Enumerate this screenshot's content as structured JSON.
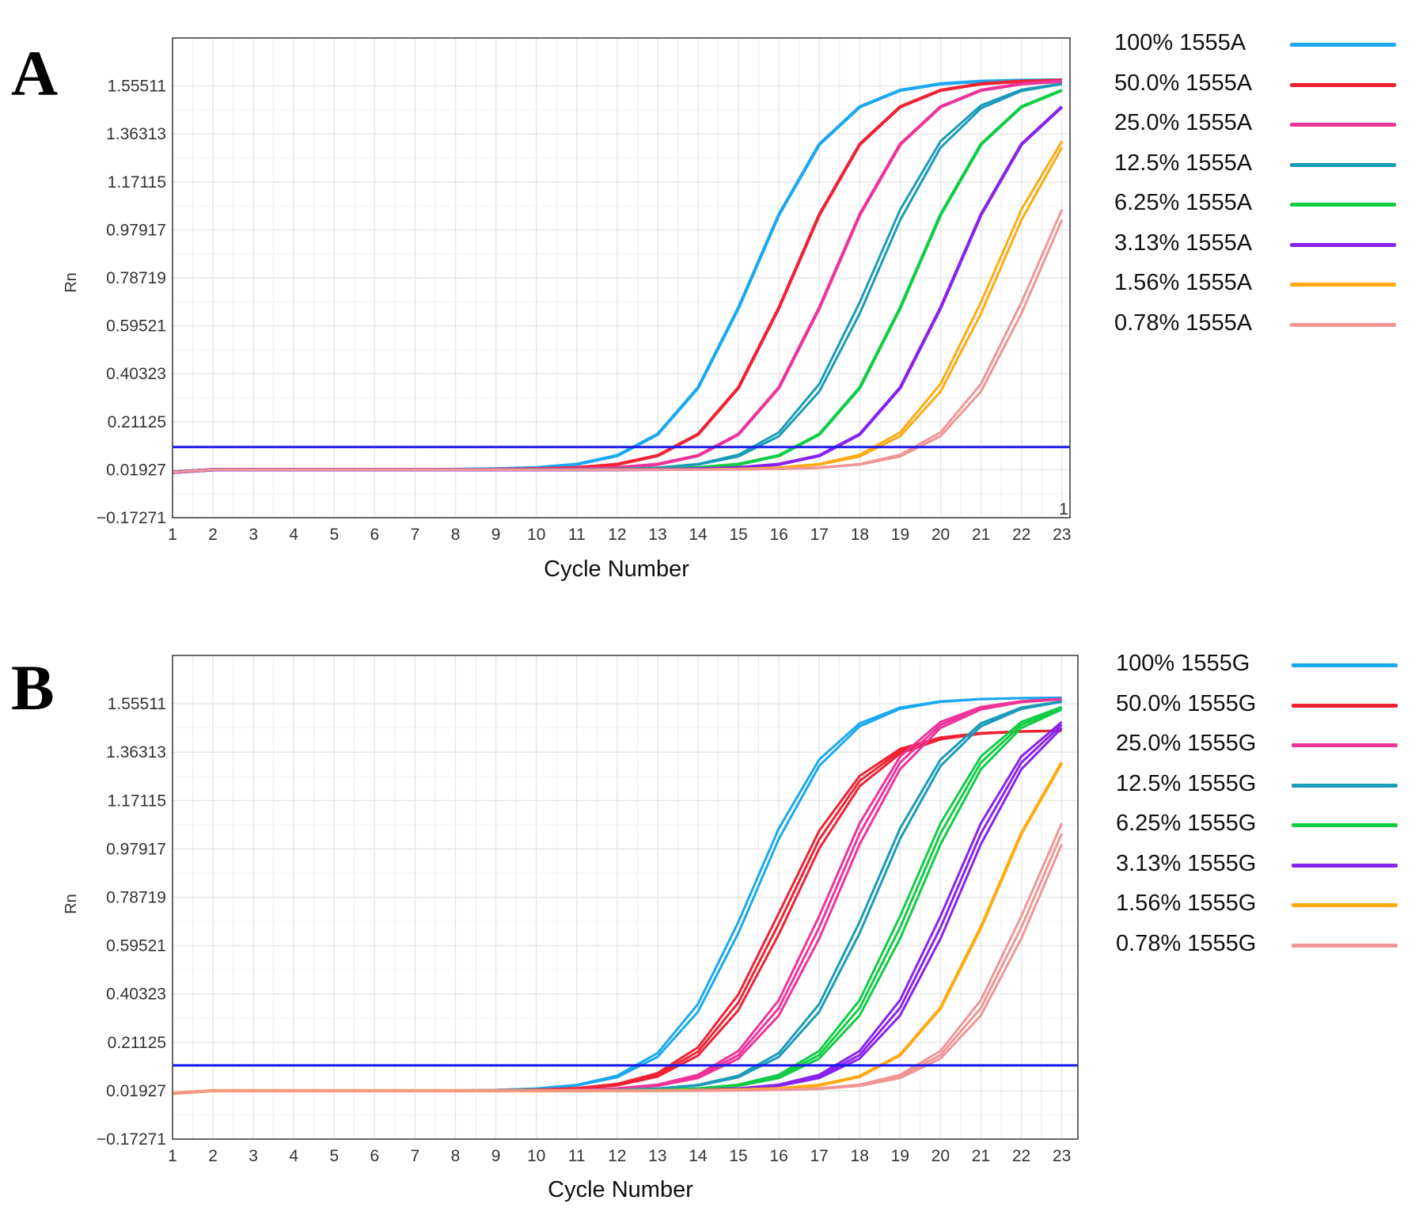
{
  "panels": {
    "a": {
      "letter": "A"
    },
    "b": {
      "letter": "B"
    }
  },
  "colors": {
    "threshold": "#1a1aee",
    "grid": "#e6e6e6",
    "frame": "#444444"
  },
  "chart_data": [
    {
      "type": "line",
      "panel": "A",
      "xlabel": "Cycle Number",
      "ylabel": "Rn",
      "x": [
        1,
        2,
        3,
        4,
        5,
        6,
        7,
        8,
        9,
        10,
        11,
        12,
        13,
        14,
        15,
        16,
        17,
        18,
        19,
        20,
        21,
        22,
        23
      ],
      "xlim": [
        1,
        23.2
      ],
      "ylim": [
        -0.17271,
        1.74709
      ],
      "yticks": [
        "1.55511",
        "1.36313",
        "1.17115",
        "0.97917",
        "0.78719",
        "0.59521",
        "0.40323",
        "0.21125",
        "0.01927",
        "−0.17271"
      ],
      "ytick_values": [
        1.55511,
        1.36313,
        1.17115,
        0.97917,
        0.78719,
        0.59521,
        0.40323,
        0.21125,
        0.01927,
        -0.17271
      ],
      "xticks": [
        "1",
        "2",
        "3",
        "4",
        "5",
        "6",
        "7",
        "8",
        "9",
        "10",
        "11",
        "12",
        "13",
        "14",
        "15",
        "16",
        "17",
        "18",
        "19",
        "20",
        "21",
        "22",
        "23"
      ],
      "threshold": 0.11,
      "corner_mark": "1",
      "series": [
        {
          "name": "100% 1555A",
          "color": "#1aa8f0",
          "ct": 11.0,
          "reps": 1
        },
        {
          "name": "50.0% 1555A",
          "color": "#ee2233",
          "ct": 12.0,
          "reps": 1
        },
        {
          "name": "25.0% 1555A",
          "color": "#ee3399",
          "ct": 13.0,
          "reps": 1
        },
        {
          "name": "12.5% 1555A",
          "color": "#1a9bb8",
          "ct": 14.0,
          "reps": 2
        },
        {
          "name": "6.25% 1555A",
          "color": "#11cc44",
          "ct": 15.0,
          "reps": 1
        },
        {
          "name": "3.13% 1555A",
          "color": "#8822ee",
          "ct": 16.0,
          "reps": 1
        },
        {
          "name": "1.56% 1555A",
          "color": "#ffaa11",
          "ct": 17.0,
          "reps": 2
        },
        {
          "name": "0.78% 1555A",
          "color": "#f09595",
          "ct": 18.0,
          "reps": 2
        }
      ]
    },
    {
      "type": "line",
      "panel": "B",
      "xlabel": "Cycle Number",
      "ylabel": "Rn",
      "x": [
        1,
        2,
        3,
        4,
        5,
        6,
        7,
        8,
        9,
        10,
        11,
        12,
        13,
        14,
        15,
        16,
        17,
        18,
        19,
        20,
        21,
        22,
        23
      ],
      "xlim": [
        1,
        23.4
      ],
      "ylim": [
        -0.17271,
        1.74709
      ],
      "yticks": [
        "1.55511",
        "1.36313",
        "1.17115",
        "0.97917",
        "0.78719",
        "0.59521",
        "0.40323",
        "0.21125",
        "0.01927",
        "−0.17271"
      ],
      "ytick_values": [
        1.55511,
        1.36313,
        1.17115,
        0.97917,
        0.78719,
        0.59521,
        0.40323,
        0.21125,
        0.01927,
        -0.17271
      ],
      "xticks": [
        "1",
        "2",
        "3",
        "4",
        "5",
        "6",
        "7",
        "8",
        "9",
        "10",
        "11",
        "12",
        "13",
        "14",
        "15",
        "16",
        "17",
        "18",
        "19",
        "20",
        "21",
        "22",
        "23"
      ],
      "threshold": 0.12,
      "series": [
        {
          "name": "100% 1555G",
          "color": "#1aa8f0",
          "ct": 11.0,
          "reps": 2
        },
        {
          "name": "50.0% 1555G",
          "color": "#ee2233",
          "ct": 11.8,
          "reps": 3,
          "plateau": 1.45
        },
        {
          "name": "25.0% 1555G",
          "color": "#ee3399",
          "ct": 13.0,
          "reps": 3
        },
        {
          "name": "12.5% 1555G",
          "color": "#1a9bb8",
          "ct": 14.0,
          "reps": 2
        },
        {
          "name": "6.25% 1555G",
          "color": "#11cc44",
          "ct": 15.0,
          "reps": 3
        },
        {
          "name": "3.13% 1555G",
          "color": "#8822ee",
          "ct": 16.0,
          "reps": 3
        },
        {
          "name": "1.56% 1555G",
          "color": "#ffaa11",
          "ct": 17.0,
          "reps": 1
        },
        {
          "name": "0.78% 1555G",
          "color": "#f09595",
          "ct": 18.0,
          "reps": 3
        }
      ]
    }
  ]
}
